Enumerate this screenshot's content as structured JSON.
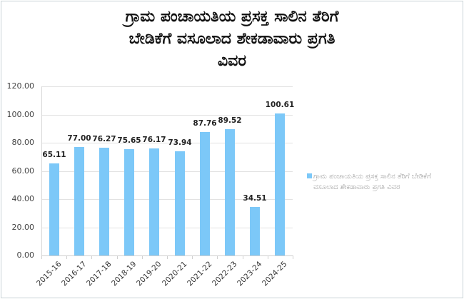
{
  "chart_data": {
    "type": "bar",
    "title": "ಗ್ರಾಮ ಪಂಚಾಯತಿಯ ಪ್ರಸಕ್ತ ಸಾಲಿನ ತೆರಿಗೆ ಬೇಡಿಕೆಗೆ ವಸೂಲಾದ ಶೇಕಡಾವಾರು ಪ್ರಗತಿ ವಿವರ",
    "title_lines": [
      "ಗ್ರಾಮ ಪಂಚಾಯತಿಯ ಪ್ರಸಕ್ತ  ಸಾಲಿನ  ತೆರಿಗೆ",
      "ಬೇಡಿಕೆಗೆ ವಸೂಲಾದ  ಶೇಕಡಾವಾರು ಪ್ರಗತಿ",
      "ವಿವರ"
    ],
    "categories": [
      "2015-16",
      "2016-17",
      "2017-18",
      "2018-19",
      "2019-20",
      "2020-21",
      "2021-22",
      "2022-23",
      "2023-24",
      "2024-25"
    ],
    "series": [
      {
        "name": "ಗ್ರಾಮ ಪಂಚಾಯತಿಯ ಪ್ರಸಕ್ತ ಸಾಲಿನ ತೆರಿಗೆ ಬೇಡಿಕೆಗೆ ವಸೂಲಾದ ಶೇಕಡಾವಾರು ಪ್ರಗತಿ ವಿವರ",
        "values": [
          65.11,
          77.0,
          76.27,
          75.65,
          76.17,
          73.94,
          87.76,
          89.52,
          34.51,
          100.61
        ],
        "labels": [
          "65.11",
          "77.00",
          "76.27",
          "75.65",
          "76.17",
          "73.94",
          "87.76",
          "89.52",
          "34.51",
          "100.61"
        ],
        "color": "#7cc8f8"
      }
    ],
    "xlabel": "",
    "ylabel": "",
    "ylim": [
      0,
      120
    ],
    "yticks": [
      "0.00",
      "20.00",
      "40.00",
      "60.00",
      "80.00",
      "100.00",
      "120.00"
    ],
    "grid": true,
    "legend_position": "right"
  }
}
